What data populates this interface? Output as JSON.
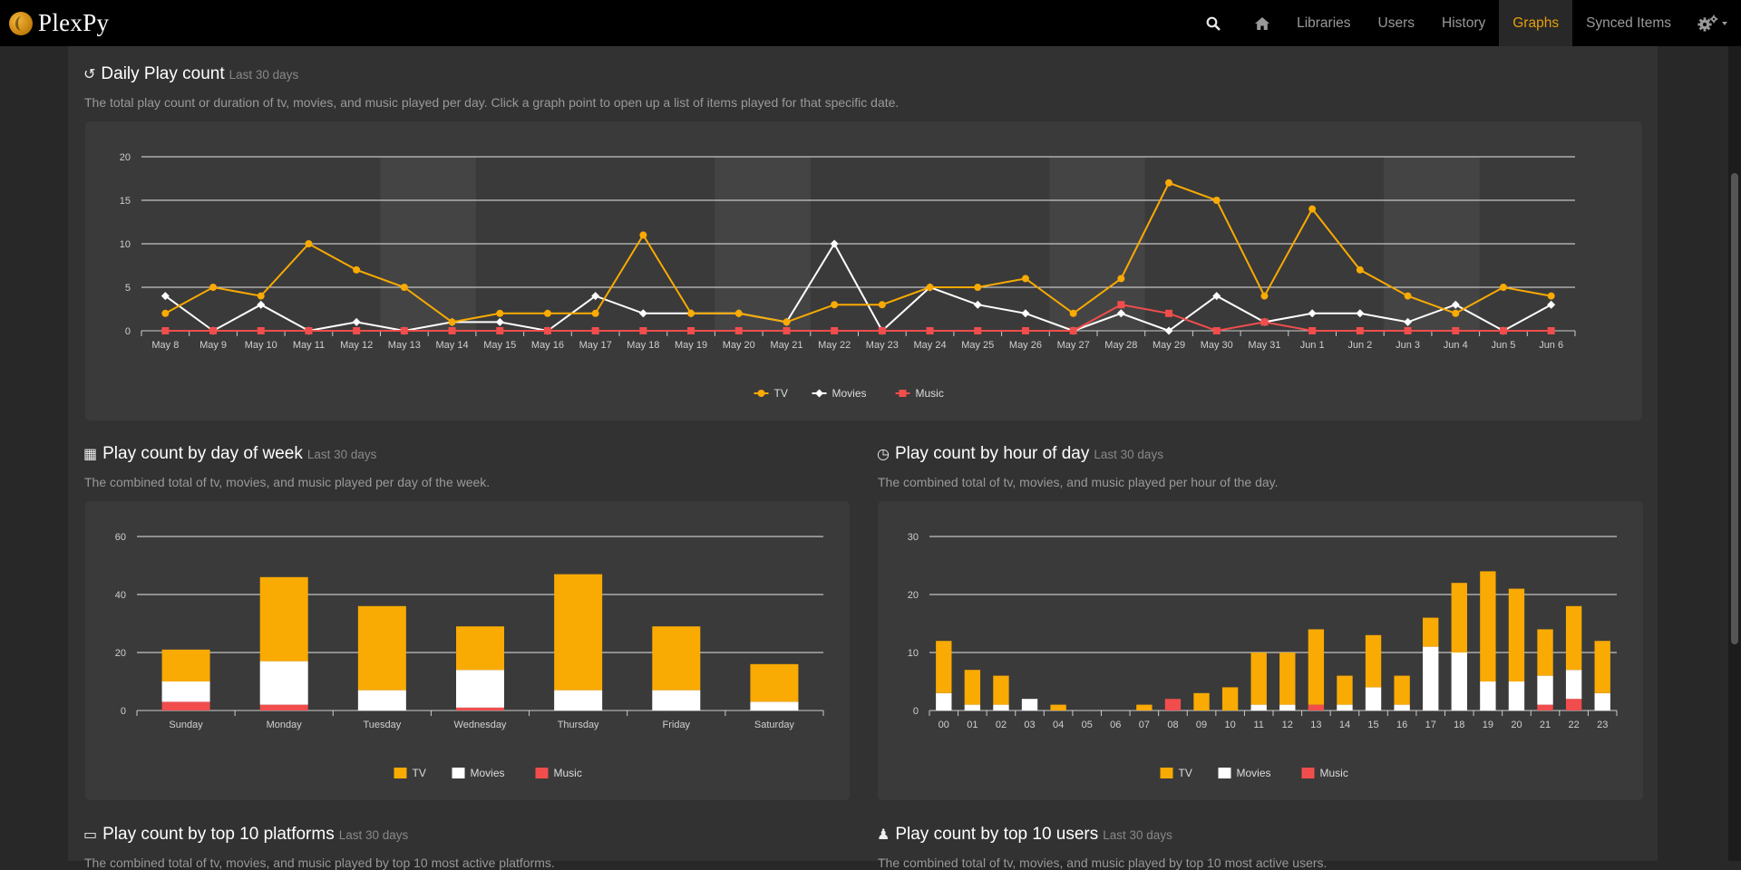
{
  "brand": {
    "name": "PlexPy"
  },
  "nav": {
    "items": [
      {
        "label": "Libraries",
        "active": false
      },
      {
        "label": "Users",
        "active": false
      },
      {
        "label": "History",
        "active": false
      },
      {
        "label": "Graphs",
        "active": true
      },
      {
        "label": "Synced Items",
        "active": false
      }
    ]
  },
  "colors": {
    "tv": "#f9aa03",
    "movies": "#ffffff",
    "music": "#f14d4d",
    "accent": "#e5a00d"
  },
  "sections": {
    "daily": {
      "title": "Daily Play count",
      "subtitle": "Last 30 days",
      "description": "The total play count or duration of tv, movies, and music played per day. Click a graph point to open up a list of items played for that specific date."
    },
    "dow": {
      "title": "Play count by day of week",
      "subtitle": "Last 30 days",
      "description": "The combined total of tv, movies, and music played per day of the week."
    },
    "hour": {
      "title": "Play count by hour of day",
      "subtitle": "Last 30 days",
      "description": "The combined total of tv, movies, and music played per hour of the day."
    },
    "platforms": {
      "title": "Play count by top 10 platforms",
      "subtitle": "Last 30 days",
      "description": "The combined total of tv, movies, and music played by top 10 most active platforms."
    },
    "users": {
      "title": "Play count by top 10 users",
      "subtitle": "Last 30 days",
      "description": "The combined total of tv, movies, and music played by top 10 most active users."
    }
  },
  "chart_data": [
    {
      "type": "line",
      "categories": [
        "May 8",
        "May 9",
        "May 10",
        "May 11",
        "May 12",
        "May 13",
        "May 14",
        "May 15",
        "May 16",
        "May 17",
        "May 18",
        "May 19",
        "May 20",
        "May 21",
        "May 22",
        "May 23",
        "May 24",
        "May 25",
        "May 26",
        "May 27",
        "May 28",
        "May 29",
        "May 30",
        "May 31",
        "Jun 1",
        "Jun 2",
        "Jun 3",
        "Jun 4",
        "Jun 5",
        "Jun 6"
      ],
      "series": [
        {
          "name": "TV",
          "values": [
            2,
            5,
            4,
            10,
            7,
            5,
            1,
            2,
            2,
            2,
            11,
            2,
            2,
            1,
            3,
            3,
            5,
            5,
            6,
            2,
            6,
            17,
            15,
            4,
            14,
            7,
            4,
            2,
            5,
            4
          ]
        },
        {
          "name": "Movies",
          "values": [
            4,
            0,
            3,
            0,
            1,
            0,
            1,
            1,
            0,
            4,
            2,
            2,
            2,
            1,
            10,
            0,
            5,
            3,
            2,
            0,
            2,
            0,
            4,
            1,
            2,
            2,
            1,
            3,
            0,
            3
          ]
        },
        {
          "name": "Music",
          "values": [
            0,
            0,
            0,
            0,
            0,
            0,
            0,
            0,
            0,
            0,
            0,
            0,
            0,
            0,
            0,
            0,
            0,
            0,
            0,
            0,
            3,
            2,
            0,
            1,
            0,
            0,
            0,
            0,
            0,
            0
          ]
        }
      ],
      "ylim": [
        0,
        20
      ],
      "yticks": [
        0,
        5,
        10,
        15,
        20
      ],
      "grid": true,
      "legend": "bottom-center"
    },
    {
      "type": "bar",
      "stacked": true,
      "categories": [
        "Sunday",
        "Monday",
        "Tuesday",
        "Wednesday",
        "Thursday",
        "Friday",
        "Saturday"
      ],
      "series": [
        {
          "name": "TV",
          "values": [
            11,
            29,
            29,
            15,
            40,
            22,
            13
          ]
        },
        {
          "name": "Movies",
          "values": [
            7,
            15,
            7,
            13,
            7,
            7,
            3
          ]
        },
        {
          "name": "Music",
          "values": [
            3,
            2,
            0,
            1,
            0,
            0,
            0
          ]
        }
      ],
      "ylim": [
        0,
        60
      ],
      "yticks": [
        0,
        20,
        40,
        60
      ],
      "grid": true,
      "legend": "bottom-center"
    },
    {
      "type": "bar",
      "stacked": true,
      "categories": [
        "00",
        "01",
        "02",
        "03",
        "04",
        "05",
        "06",
        "07",
        "08",
        "09",
        "10",
        "11",
        "12",
        "13",
        "14",
        "15",
        "16",
        "17",
        "18",
        "19",
        "20",
        "21",
        "22",
        "23"
      ],
      "series": [
        {
          "name": "TV",
          "values": [
            9,
            6,
            5,
            0,
            1,
            0,
            0,
            1,
            0,
            3,
            4,
            9,
            9,
            13,
            5,
            9,
            5,
            5,
            12,
            19,
            16,
            8,
            11,
            9
          ]
        },
        {
          "name": "Movies",
          "values": [
            3,
            1,
            1,
            2,
            0,
            0,
            0,
            0,
            0,
            0,
            0,
            1,
            1,
            0,
            1,
            4,
            1,
            11,
            10,
            5,
            5,
            5,
            5,
            3
          ]
        },
        {
          "name": "Music",
          "values": [
            0,
            0,
            0,
            0,
            0,
            0,
            0,
            0,
            2,
            0,
            0,
            0,
            0,
            1,
            0,
            0,
            0,
            0,
            0,
            0,
            0,
            1,
            2,
            0
          ]
        }
      ],
      "ylim": [
        0,
        30
      ],
      "yticks": [
        0,
        10,
        20,
        30
      ],
      "grid": true,
      "legend": "bottom-center"
    }
  ]
}
